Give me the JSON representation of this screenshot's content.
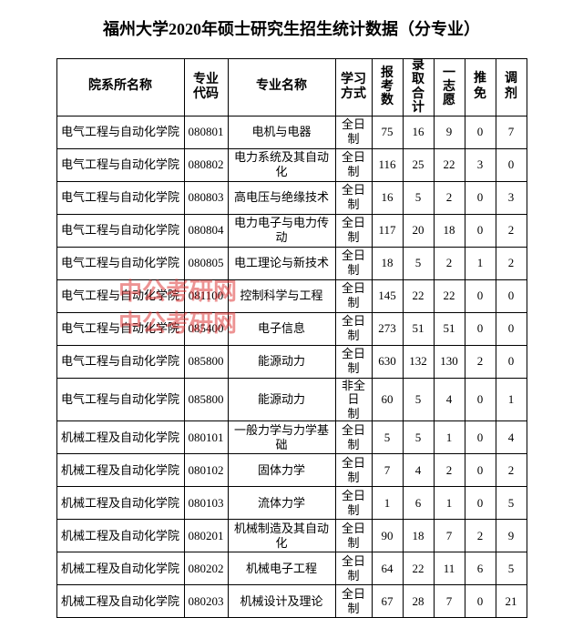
{
  "title": "福州大学2020年硕士研究生招生统计数据（分专业）",
  "watermark": "中公考研网",
  "columns": [
    "院系所名称",
    "专业代码",
    "专业名称",
    "学习方式",
    "报考数",
    "录取合计",
    "一志愿",
    "推免",
    "调剂"
  ],
  "col_widths_class": [
    "col-dept",
    "col-code",
    "col-major",
    "col-mode",
    "col-narrow",
    "col-narrow",
    "col-narrow",
    "col-narrow",
    "col-narrow"
  ],
  "header_vertical": [
    false,
    true,
    false,
    true,
    true,
    true,
    true,
    false,
    false
  ],
  "rows": [
    [
      "电气工程与自动化学院",
      "080801",
      "电机与电器",
      "全日制",
      "75",
      "16",
      "9",
      "0",
      "7"
    ],
    [
      "电气工程与自动化学院",
      "080802",
      "电力系统及其自动化",
      "全日制",
      "116",
      "25",
      "22",
      "3",
      "0"
    ],
    [
      "电气工程与自动化学院",
      "080803",
      "高电压与绝缘技术",
      "全日制",
      "16",
      "5",
      "2",
      "0",
      "3"
    ],
    [
      "电气工程与自动化学院",
      "080804",
      "电力电子与电力传动",
      "全日制",
      "117",
      "20",
      "18",
      "0",
      "2"
    ],
    [
      "电气工程与自动化学院",
      "080805",
      "电工理论与新技术",
      "全日制",
      "18",
      "5",
      "2",
      "1",
      "2"
    ],
    [
      "电气工程与自动化学院",
      "081100",
      "控制科学与工程",
      "全日制",
      "145",
      "22",
      "22",
      "0",
      "0"
    ],
    [
      "电气工程与自动化学院",
      "085400",
      "电子信息",
      "全日制",
      "273",
      "51",
      "51",
      "0",
      "0"
    ],
    [
      "电气工程与自动化学院",
      "085800",
      "能源动力",
      "全日制",
      "630",
      "132",
      "130",
      "2",
      "0"
    ],
    [
      "电气工程与自动化学院",
      "085800",
      "能源动力",
      "非全日制",
      "60",
      "5",
      "4",
      "0",
      "1"
    ],
    [
      "机械工程及自动化学院",
      "080101",
      "一般力学与力学基础",
      "全日制",
      "5",
      "5",
      "1",
      "0",
      "4"
    ],
    [
      "机械工程及自动化学院",
      "080102",
      "固体力学",
      "全日制",
      "7",
      "4",
      "2",
      "0",
      "2"
    ],
    [
      "机械工程及自动化学院",
      "080103",
      "流体力学",
      "全日制",
      "1",
      "6",
      "1",
      "0",
      "5"
    ],
    [
      "机械工程及自动化学院",
      "080201",
      "机械制造及其自动化",
      "全日制",
      "90",
      "18",
      "7",
      "2",
      "9"
    ],
    [
      "机械工程及自动化学院",
      "080202",
      "机械电子工程",
      "全日制",
      "64",
      "22",
      "11",
      "6",
      "5"
    ],
    [
      "机械工程及自动化学院",
      "080203",
      "机械设计及理论",
      "全日制",
      "67",
      "28",
      "7",
      "0",
      "21"
    ]
  ],
  "colors": {
    "border": "#000000",
    "text": "#000000",
    "background": "#ffffff",
    "watermark": "rgba(220,40,40,0.5)"
  }
}
